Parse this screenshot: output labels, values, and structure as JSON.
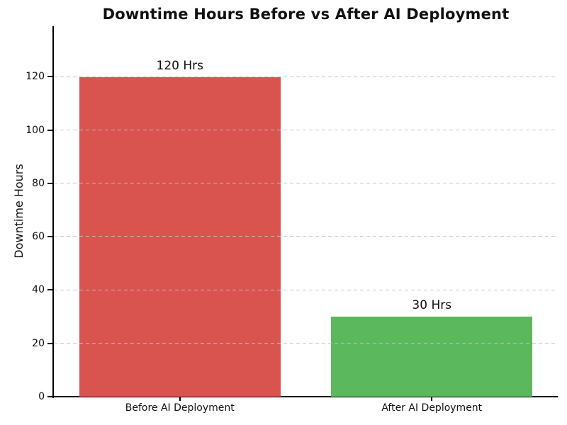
{
  "chart_data": {
    "type": "bar",
    "title": "Downtime Hours Before vs After AI Deployment",
    "xlabel": "",
    "ylabel": "Downtime Hours",
    "categories": [
      "Before AI Deployment",
      "After AI Deployment"
    ],
    "values": [
      120,
      30
    ],
    "bar_labels": [
      "120 Hrs",
      "30 Hrs"
    ],
    "bar_colors": [
      "#d9534f",
      "#5cb85c"
    ],
    "yticks": [
      0,
      20,
      40,
      60,
      80,
      100,
      120
    ],
    "ylim": [
      0,
      139
    ],
    "grid": "horizontal-dashed",
    "grid_color": "#c3c3c3",
    "legend_position": "none",
    "background_color": "#ffffff",
    "text_color": "#111111"
  }
}
